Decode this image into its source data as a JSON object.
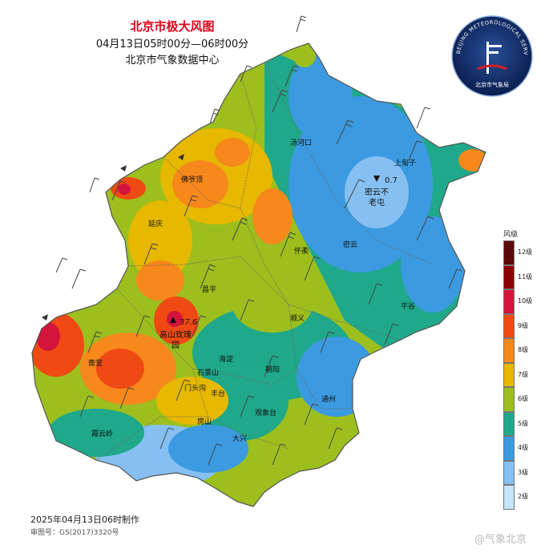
{
  "title": "北京市极大风图",
  "time_range": "04月13日05时00分—06时00分",
  "source": "北京市气象数据中心",
  "logo_text": "BEIJING METEOROLOGICAL SERVICE",
  "logo_cn": "北京市气象局",
  "legend": {
    "title": "风级",
    "levels": [
      {
        "label": "12级",
        "color": "#5a0a0a"
      },
      {
        "label": "11级",
        "color": "#8b0000"
      },
      {
        "label": "10级",
        "color": "#d4143c"
      },
      {
        "label": "9级",
        "color": "#f04a14"
      },
      {
        "label": "8级",
        "color": "#f7881c"
      },
      {
        "label": "7级",
        "color": "#e6b800"
      },
      {
        "label": "6级",
        "color": "#9cbf1e"
      },
      {
        "label": "5级",
        "color": "#1fa88a"
      },
      {
        "label": "4级",
        "color": "#3c9ae0"
      },
      {
        "label": "3级",
        "color": "#86c0f2"
      },
      {
        "label": "2级",
        "color": "#c6e4fb"
      }
    ]
  },
  "places": {
    "tanghekou": "汤河口",
    "shangdianzi": "上甸子",
    "badaling": "佛爷顶",
    "yanqing": "延庆",
    "huairou": "怀柔",
    "miyun": "密云",
    "pinggu": "平谷",
    "changping": "昌平",
    "shunyi": "顺义",
    "haidian": "海淀",
    "chaoyang": "朝阳",
    "shijingshan": "石景山",
    "mentougou": "门头沟",
    "fengtai": "丰台",
    "zhaitang": "斋堂",
    "tongzhou": "通州",
    "guanxiangtai": "观象台",
    "fangshan": "房山",
    "daxing": "大兴",
    "xiayunling": "霞云岭"
  },
  "stations": {
    "max": {
      "value": "37.6",
      "name": "高山玫瑰园"
    },
    "min": {
      "value": "0.7",
      "name": "密云不老屯"
    }
  },
  "footer": {
    "made": "2025年04月13日06时制作",
    "review": "审图号：GS(2017)3320号"
  },
  "watermark": "@气象北京"
}
